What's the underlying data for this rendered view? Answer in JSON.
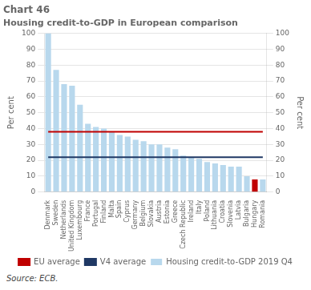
{
  "chart_data": {
    "type": "bar",
    "title": "Chart 46",
    "subtitle": "Housing credit-to-GDP in European comparison",
    "ylabel": "Per cent",
    "y2label": "Per cent",
    "source": "Source: ECB.",
    "categories": [
      "Denmark",
      "Sweden",
      "Netherlands",
      "United Kingdom",
      "Luxembourg",
      "France",
      "Portugal",
      "Finland",
      "Malta",
      "Spain",
      "Cyprus",
      "Germany",
      "Belgium",
      "Slovakia",
      "Austria",
      "Estonia",
      "Greece",
      "Czech Republic",
      "Ireland",
      "Italy",
      "Poland",
      "Lithuania",
      "Croatia",
      "Slovenia",
      "Latvia",
      "Bulgaria",
      "Hungary",
      "Romania"
    ],
    "series": [
      {
        "name": "Housing credit-to-GDP 2019 Q4",
        "type": "bar",
        "values": [
          100,
          77,
          68,
          67,
          55,
          43,
          41,
          40,
          38,
          36,
          35,
          33,
          32,
          30,
          30,
          28,
          27,
          23,
          22,
          21,
          19,
          18,
          17,
          16,
          16,
          10,
          8,
          8
        ],
        "colors": [
          "#b8d8ed",
          "#b8d8ed",
          "#b8d8ed",
          "#b8d8ed",
          "#b8d8ed",
          "#b8d8ed",
          "#b8d8ed",
          "#b8d8ed",
          "#b8d8ed",
          "#b8d8ed",
          "#b8d8ed",
          "#b8d8ed",
          "#b8d8ed",
          "#b8d8ed",
          "#b8d8ed",
          "#b8d8ed",
          "#b8d8ed",
          "#b8d8ed",
          "#b8d8ed",
          "#b8d8ed",
          "#b8d8ed",
          "#b8d8ed",
          "#b8d8ed",
          "#b8d8ed",
          "#b8d8ed",
          "#b8d8ed",
          "#c00000",
          "#b8d8ed"
        ]
      },
      {
        "name": "EU average",
        "type": "line",
        "color": "#c00000",
        "values": [
          38,
          38,
          38,
          38,
          38,
          38,
          38,
          38,
          38,
          38,
          38,
          38,
          38,
          38,
          38,
          38,
          38,
          38,
          38,
          38,
          38,
          38,
          38,
          38,
          38,
          38,
          38,
          38
        ]
      },
      {
        "name": "V4 average",
        "type": "line",
        "color": "#1f3864",
        "values": [
          22,
          22,
          22,
          22,
          22,
          22,
          22,
          22,
          22,
          22,
          22,
          22,
          22,
          22,
          22,
          22,
          22,
          22,
          22,
          22,
          22,
          22,
          22,
          22,
          22,
          22,
          22,
          22
        ]
      }
    ],
    "ylim": [
      0,
      100
    ],
    "yticks": [
      0,
      10,
      20,
      30,
      40,
      50,
      60,
      70,
      80,
      90,
      100
    ],
    "y2lim": [
      0,
      100
    ],
    "y2ticks": [
      0,
      10,
      20,
      30,
      40,
      50,
      60,
      70,
      80,
      90,
      100
    ],
    "grid": true,
    "legend": "bottom"
  }
}
